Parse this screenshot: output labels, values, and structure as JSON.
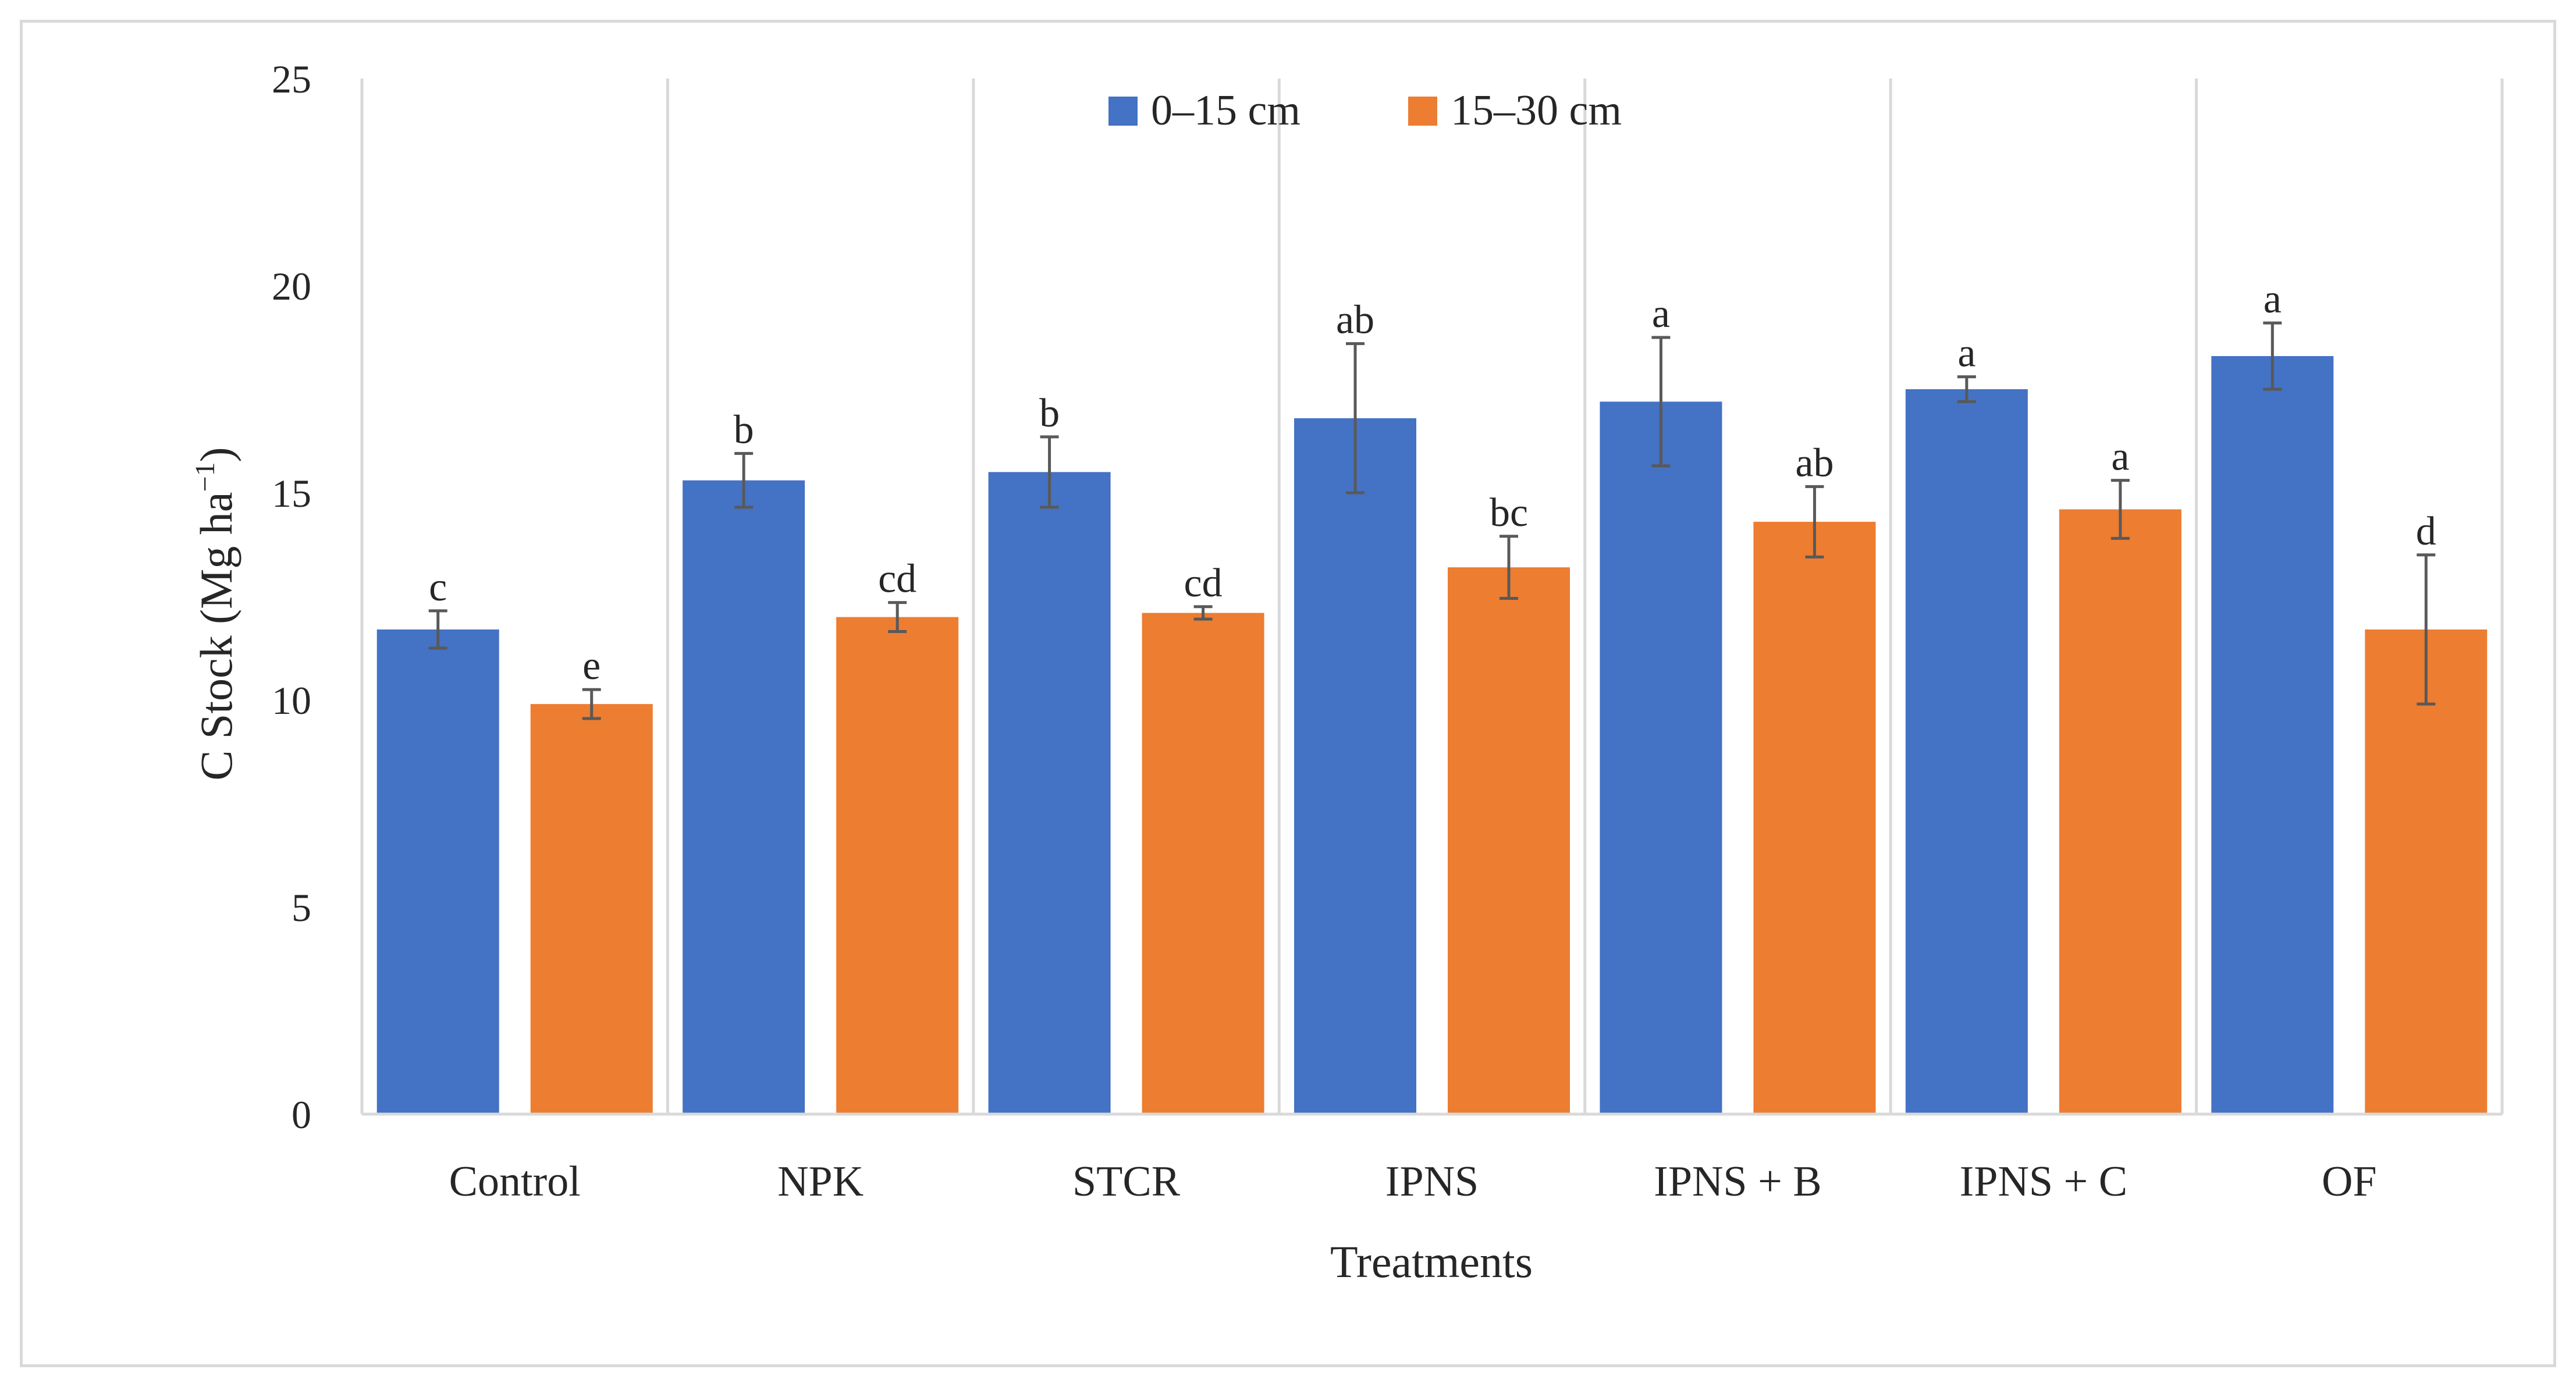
{
  "chart_data": {
    "type": "bar",
    "title": "",
    "xlabel": "Treatments",
    "ylabel_main": "C Stock (Mg ha",
    "ylabel_sup": "−1",
    "ylabel_close": ")",
    "ylim": [
      0,
      25
    ],
    "yticks": [
      0,
      5,
      10,
      15,
      20,
      25
    ],
    "grid": "vertical-separators",
    "legend_position": "top-center",
    "categories": [
      "Control",
      "NPK",
      "STCR",
      "IPNS",
      "IPNS + B",
      "IPNS + C",
      "OF"
    ],
    "series": [
      {
        "name": "0–15 cm",
        "color": "#4472C4",
        "values": [
          11.7,
          15.3,
          15.5,
          16.8,
          17.2,
          17.5,
          18.3
        ],
        "errors": [
          0.45,
          0.65,
          0.85,
          1.8,
          1.55,
          0.3,
          0.8
        ],
        "labels": [
          "c",
          "b",
          "b",
          "ab",
          "a",
          "a",
          "a"
        ]
      },
      {
        "name": "15–30 cm",
        "color": "#ED7D31",
        "values": [
          9.9,
          12.0,
          12.1,
          13.2,
          14.3,
          14.6,
          11.7
        ],
        "errors": [
          0.35,
          0.35,
          0.15,
          0.75,
          0.85,
          0.7,
          1.8
        ],
        "labels": [
          "e",
          "cd",
          "cd",
          "bc",
          "ab",
          "a",
          "d"
        ]
      }
    ]
  }
}
